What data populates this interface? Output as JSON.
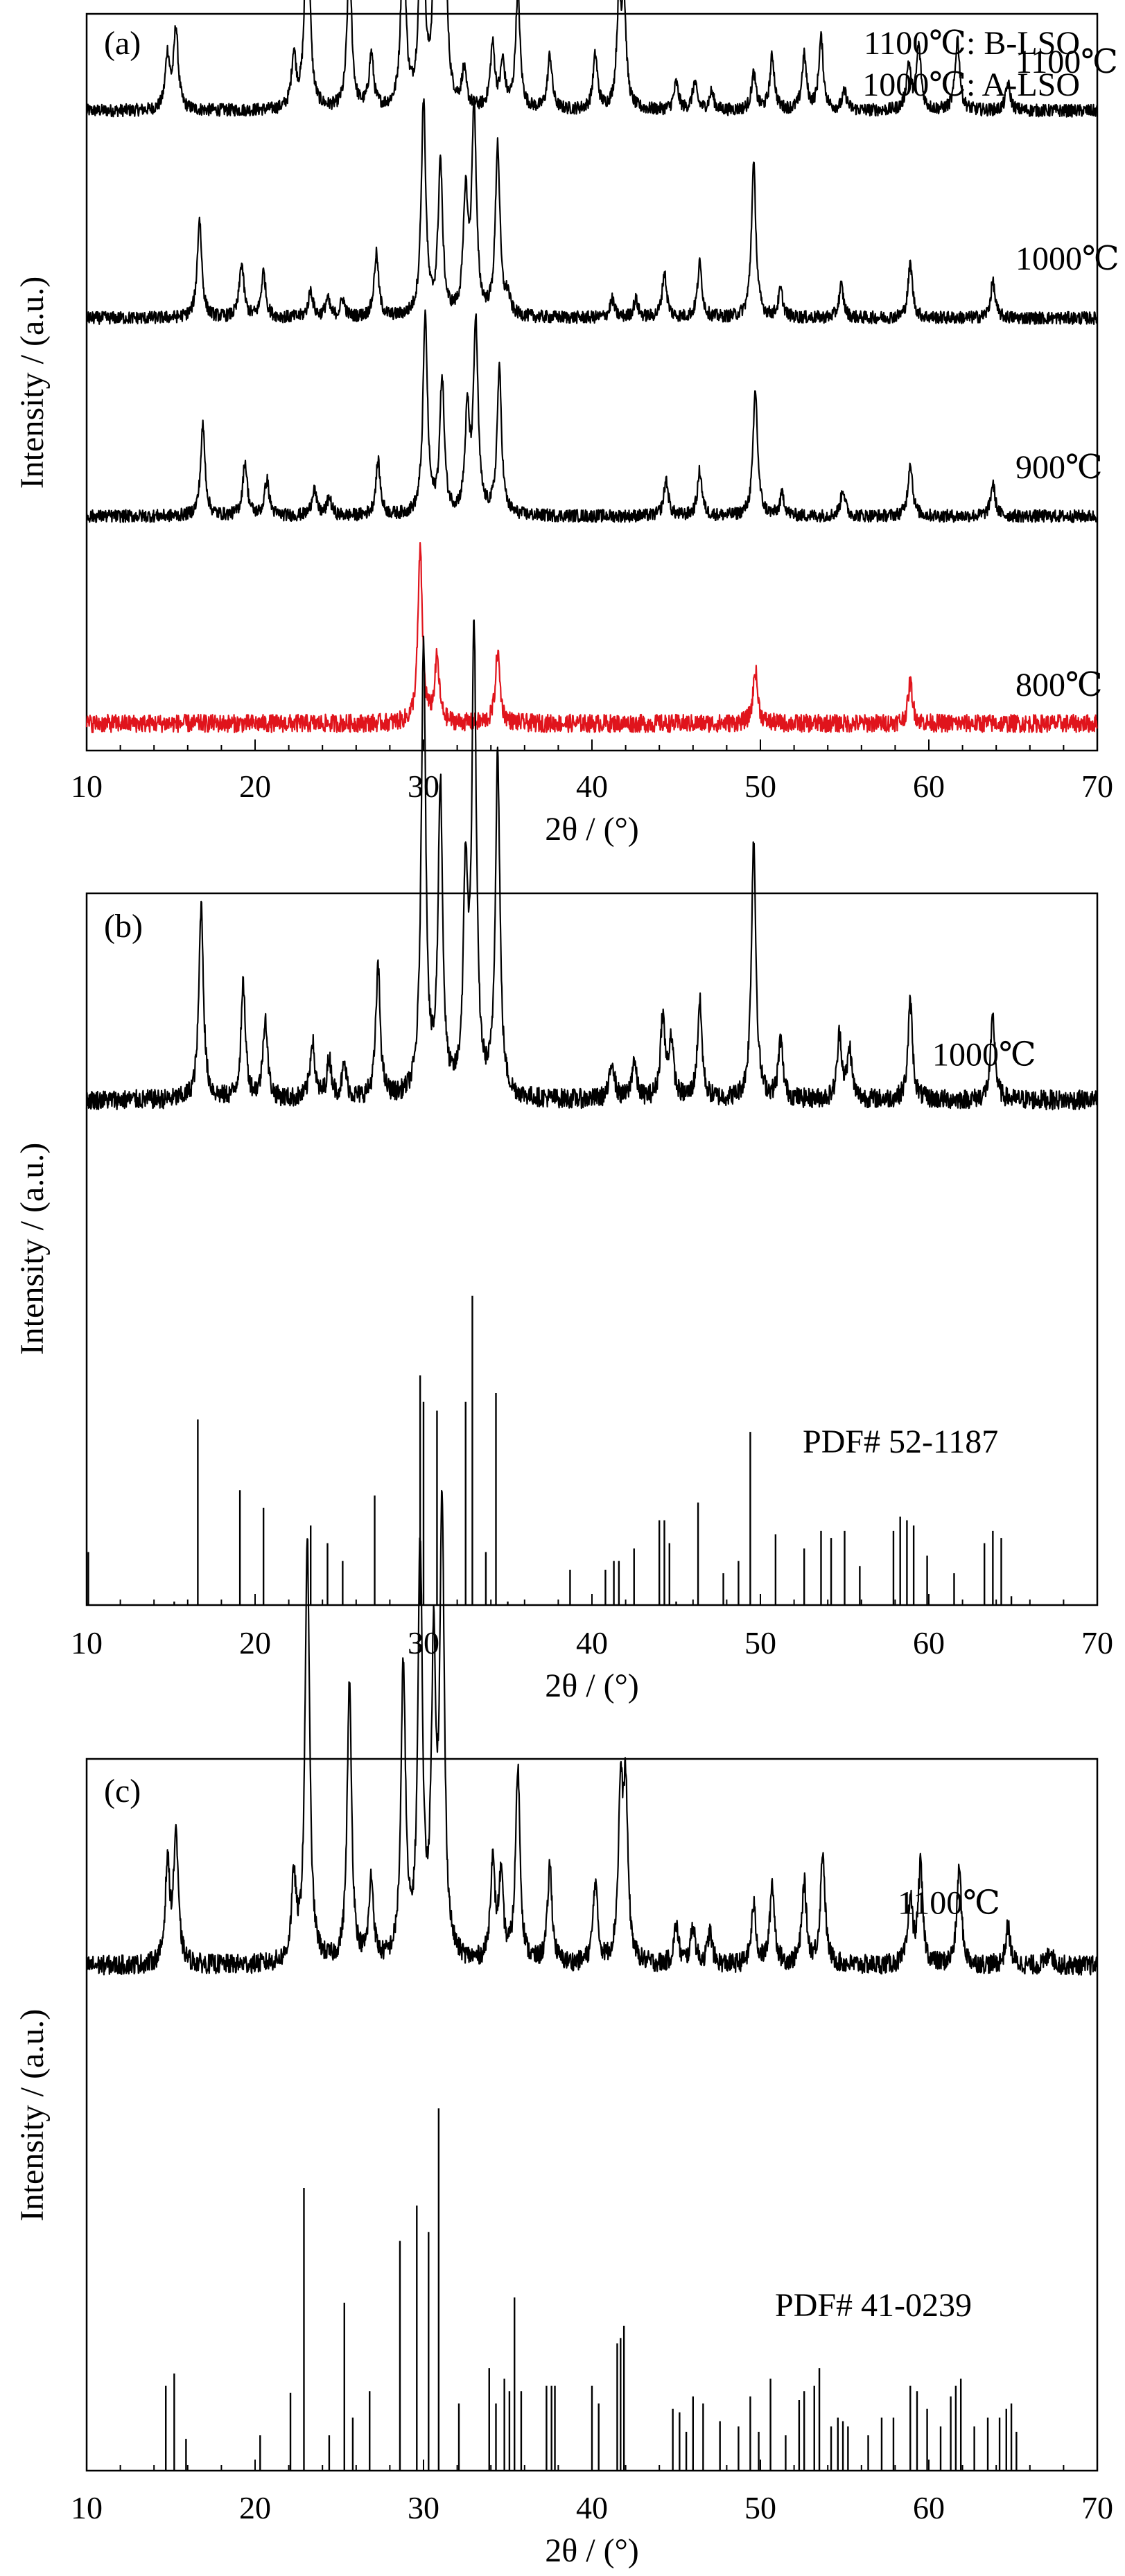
{
  "chart_data": [
    {
      "type": "line",
      "panel_label": "(a)",
      "xlabel": "2θ / (°)",
      "ylabel": "Intensity / (a.u.)",
      "xlim": [
        10,
        70
      ],
      "xticks": [
        10,
        20,
        30,
        40,
        50,
        60,
        70
      ],
      "annotations": [
        "1100℃: B-LSO",
        "1000℃: A-LSO"
      ],
      "series": [
        {
          "name": "1100℃",
          "color": "#000000",
          "offset": 3.55,
          "noise": 0.035,
          "peaks": [
            [
              14.8,
              0.3
            ],
            [
              15.3,
              0.45
            ],
            [
              22.3,
              0.3
            ],
            [
              23.1,
              1.3
            ],
            [
              25.6,
              0.85
            ],
            [
              26.9,
              0.3
            ],
            [
              28.8,
              1.05
            ],
            [
              29.9,
              1.4
            ],
            [
              30.7,
              1.0
            ],
            [
              31.2,
              1.5
            ],
            [
              32.4,
              0.2
            ],
            [
              34.1,
              0.35
            ],
            [
              34.7,
              0.25
            ],
            [
              35.6,
              0.65
            ],
            [
              37.5,
              0.3
            ],
            [
              40.2,
              0.3
            ],
            [
              41.6,
              0.55
            ],
            [
              41.9,
              0.55
            ],
            [
              45.0,
              0.15
            ],
            [
              46.1,
              0.15
            ],
            [
              47.1,
              0.1
            ],
            [
              49.6,
              0.2
            ],
            [
              50.7,
              0.3
            ],
            [
              52.6,
              0.3
            ],
            [
              53.6,
              0.4
            ],
            [
              55.0,
              0.1
            ],
            [
              58.8,
              0.25
            ],
            [
              59.4,
              0.35
            ],
            [
              61.7,
              0.4
            ],
            [
              64.7,
              0.15
            ]
          ]
        },
        {
          "name": "1000℃",
          "color": "#000000",
          "offset": 2.4,
          "noise": 0.035,
          "peaks": [
            [
              16.7,
              0.55
            ],
            [
              19.2,
              0.3
            ],
            [
              20.5,
              0.25
            ],
            [
              23.3,
              0.15
            ],
            [
              24.3,
              0.1
            ],
            [
              25.2,
              0.1
            ],
            [
              27.2,
              0.35
            ],
            [
              30.0,
              1.2
            ],
            [
              31.0,
              0.85
            ],
            [
              32.5,
              0.65
            ],
            [
              33.0,
              1.15
            ],
            [
              34.4,
              0.95
            ],
            [
              35.0,
              0.1
            ],
            [
              41.2,
              0.1
            ],
            [
              42.6,
              0.1
            ],
            [
              44.3,
              0.25
            ],
            [
              46.4,
              0.3
            ],
            [
              49.6,
              0.85
            ],
            [
              51.2,
              0.15
            ],
            [
              54.8,
              0.18
            ],
            [
              58.9,
              0.3
            ],
            [
              63.8,
              0.2
            ]
          ]
        },
        {
          "name": "900℃",
          "color": "#000000",
          "offset": 1.3,
          "noise": 0.035,
          "peaks": [
            [
              16.9,
              0.5
            ],
            [
              19.4,
              0.3
            ],
            [
              20.7,
              0.2
            ],
            [
              23.5,
              0.15
            ],
            [
              24.4,
              0.1
            ],
            [
              27.3,
              0.3
            ],
            [
              30.1,
              1.1
            ],
            [
              31.1,
              0.75
            ],
            [
              32.6,
              0.55
            ],
            [
              33.1,
              1.05
            ],
            [
              34.5,
              0.8
            ],
            [
              44.4,
              0.2
            ],
            [
              46.4,
              0.25
            ],
            [
              49.7,
              0.7
            ],
            [
              51.3,
              0.12
            ],
            [
              54.9,
              0.15
            ],
            [
              58.9,
              0.3
            ],
            [
              63.8,
              0.18
            ]
          ]
        },
        {
          "name": "800℃",
          "color": "#e0141c",
          "offset": 0.15,
          "noise": 0.05,
          "peaks": [
            [
              29.8,
              0.95
            ],
            [
              30.8,
              0.35
            ],
            [
              34.4,
              0.4
            ],
            [
              49.7,
              0.3
            ],
            [
              58.9,
              0.23
            ]
          ]
        }
      ]
    },
    {
      "type": "line",
      "panel_label": "(b)",
      "xlabel": "2θ / (°)",
      "ylabel": "Intensity / (a.u.)",
      "xlim": [
        10,
        70
      ],
      "xticks": [
        10,
        20,
        30,
        40,
        50,
        60,
        70
      ],
      "series": [
        {
          "name": "1000℃",
          "color": "#000000",
          "offset": 1.55,
          "noise": 0.03,
          "peaks": [
            [
              16.8,
              0.6
            ],
            [
              19.3,
              0.35
            ],
            [
              20.6,
              0.25
            ],
            [
              23.4,
              0.18
            ],
            [
              24.4,
              0.12
            ],
            [
              25.3,
              0.1
            ],
            [
              27.3,
              0.4
            ],
            [
              30.0,
              1.4
            ],
            [
              31.0,
              0.95
            ],
            [
              32.5,
              0.65
            ],
            [
              33.0,
              1.4
            ],
            [
              34.4,
              1.05
            ],
            [
              41.2,
              0.12
            ],
            [
              42.5,
              0.12
            ],
            [
              44.2,
              0.25
            ],
            [
              44.7,
              0.18
            ],
            [
              46.4,
              0.3
            ],
            [
              49.6,
              0.8
            ],
            [
              51.2,
              0.18
            ],
            [
              54.7,
              0.2
            ],
            [
              55.3,
              0.15
            ],
            [
              58.9,
              0.3
            ],
            [
              63.8,
              0.25
            ]
          ]
        }
      ],
      "reference": {
        "name": "PDF# 52-1187",
        "lines": [
          [
            10.1,
            0.3
          ],
          [
            15.2,
            0.02
          ],
          [
            16.6,
            1.05
          ],
          [
            19.1,
            0.65
          ],
          [
            20.5,
            0.55
          ],
          [
            23.3,
            0.45
          ],
          [
            24.3,
            0.35
          ],
          [
            25.2,
            0.25
          ],
          [
            27.1,
            0.62
          ],
          [
            29.8,
            1.3
          ],
          [
            30.0,
            1.15
          ],
          [
            30.8,
            1.1
          ],
          [
            32.5,
            1.15
          ],
          [
            32.9,
            1.75
          ],
          [
            33.7,
            0.3
          ],
          [
            34.3,
            1.2
          ],
          [
            35.0,
            0.02
          ],
          [
            38.7,
            0.2
          ],
          [
            40.8,
            0.2
          ],
          [
            41.3,
            0.25
          ],
          [
            41.6,
            0.25
          ],
          [
            42.5,
            0.32
          ],
          [
            44.0,
            0.48
          ],
          [
            44.3,
            0.48
          ],
          [
            44.6,
            0.35
          ],
          [
            45.0,
            0.02
          ],
          [
            46.3,
            0.58
          ],
          [
            47.8,
            0.18
          ],
          [
            48.7,
            0.25
          ],
          [
            49.4,
            0.98
          ],
          [
            50.9,
            0.4
          ],
          [
            52.6,
            0.32
          ],
          [
            53.6,
            0.42
          ],
          [
            54.2,
            0.38
          ],
          [
            55.0,
            0.42
          ],
          [
            55.9,
            0.22
          ],
          [
            57.9,
            0.42
          ],
          [
            58.3,
            0.5
          ],
          [
            58.7,
            0.48
          ],
          [
            59.1,
            0.45
          ],
          [
            59.9,
            0.28
          ],
          [
            61.5,
            0.18
          ],
          [
            63.3,
            0.35
          ],
          [
            63.8,
            0.42
          ],
          [
            64.3,
            0.38
          ],
          [
            64.9,
            0.05
          ]
        ]
      }
    },
    {
      "type": "line",
      "panel_label": "(c)",
      "xlabel": "2θ / (°)",
      "ylabel": "Intensity / (a.u.)",
      "xlim": [
        10,
        70
      ],
      "xticks": [
        10,
        20,
        30,
        40,
        50,
        60,
        70
      ],
      "series": [
        {
          "name": "1100℃",
          "color": "#000000",
          "offset": 1.55,
          "noise": 0.03,
          "peaks": [
            [
              14.8,
              0.3
            ],
            [
              15.3,
              0.4
            ],
            [
              22.3,
              0.25
            ],
            [
              23.1,
              1.3
            ],
            [
              25.6,
              0.85
            ],
            [
              26.9,
              0.25
            ],
            [
              28.8,
              0.9
            ],
            [
              29.8,
              1.25
            ],
            [
              30.6,
              0.9
            ],
            [
              31.1,
              1.35
            ],
            [
              34.1,
              0.3
            ],
            [
              34.6,
              0.25
            ],
            [
              35.6,
              0.6
            ],
            [
              37.5,
              0.3
            ],
            [
              40.2,
              0.25
            ],
            [
              41.7,
              0.5
            ],
            [
              42.0,
              0.5
            ],
            [
              45.0,
              0.12
            ],
            [
              46.0,
              0.12
            ],
            [
              47.0,
              0.1
            ],
            [
              49.6,
              0.18
            ],
            [
              50.7,
              0.25
            ],
            [
              52.6,
              0.25
            ],
            [
              53.7,
              0.35
            ],
            [
              58.9,
              0.2
            ],
            [
              59.5,
              0.3
            ],
            [
              61.8,
              0.3
            ],
            [
              64.7,
              0.12
            ],
            [
              67.2,
              0.05
            ]
          ]
        }
      ],
      "reference": {
        "name": "PDF# 41-0239",
        "lines": [
          [
            14.7,
            0.48
          ],
          [
            15.2,
            0.55
          ],
          [
            15.9,
            0.18
          ],
          [
            20.3,
            0.2
          ],
          [
            22.1,
            0.44
          ],
          [
            22.9,
            1.6
          ],
          [
            24.4,
            0.2
          ],
          [
            25.3,
            0.95
          ],
          [
            25.8,
            0.3
          ],
          [
            26.8,
            0.45
          ],
          [
            28.6,
            1.3
          ],
          [
            29.6,
            1.5
          ],
          [
            30.3,
            1.35
          ],
          [
            30.9,
            2.05
          ],
          [
            32.1,
            0.38
          ],
          [
            33.9,
            0.58
          ],
          [
            34.3,
            0.38
          ],
          [
            34.8,
            0.52
          ],
          [
            35.1,
            0.45
          ],
          [
            35.4,
            0.98
          ],
          [
            35.8,
            0.45
          ],
          [
            37.3,
            0.48
          ],
          [
            37.6,
            0.48
          ],
          [
            37.8,
            0.48
          ],
          [
            40.0,
            0.48
          ],
          [
            40.4,
            0.38
          ],
          [
            41.5,
            0.72
          ],
          [
            41.7,
            0.75
          ],
          [
            41.9,
            0.82
          ],
          [
            44.8,
            0.35
          ],
          [
            45.2,
            0.33
          ],
          [
            45.6,
            0.22
          ],
          [
            46.0,
            0.42
          ],
          [
            46.6,
            0.38
          ],
          [
            47.6,
            0.28
          ],
          [
            48.7,
            0.25
          ],
          [
            49.4,
            0.42
          ],
          [
            49.9,
            0.22
          ],
          [
            50.6,
            0.52
          ],
          [
            51.5,
            0.2
          ],
          [
            52.3,
            0.4
          ],
          [
            52.6,
            0.45
          ],
          [
            53.2,
            0.48
          ],
          [
            53.5,
            0.58
          ],
          [
            54.2,
            0.25
          ],
          [
            54.6,
            0.3
          ],
          [
            54.9,
            0.28
          ],
          [
            55.2,
            0.25
          ],
          [
            56.4,
            0.2
          ],
          [
            57.2,
            0.3
          ],
          [
            57.9,
            0.3
          ],
          [
            58.9,
            0.48
          ],
          [
            59.3,
            0.45
          ],
          [
            59.9,
            0.35
          ],
          [
            60.7,
            0.25
          ],
          [
            61.3,
            0.42
          ],
          [
            61.6,
            0.48
          ],
          [
            61.9,
            0.52
          ],
          [
            62.7,
            0.25
          ],
          [
            63.5,
            0.3
          ],
          [
            64.2,
            0.3
          ],
          [
            64.6,
            0.35
          ],
          [
            64.9,
            0.38
          ],
          [
            65.2,
            0.22
          ]
        ]
      }
    }
  ]
}
